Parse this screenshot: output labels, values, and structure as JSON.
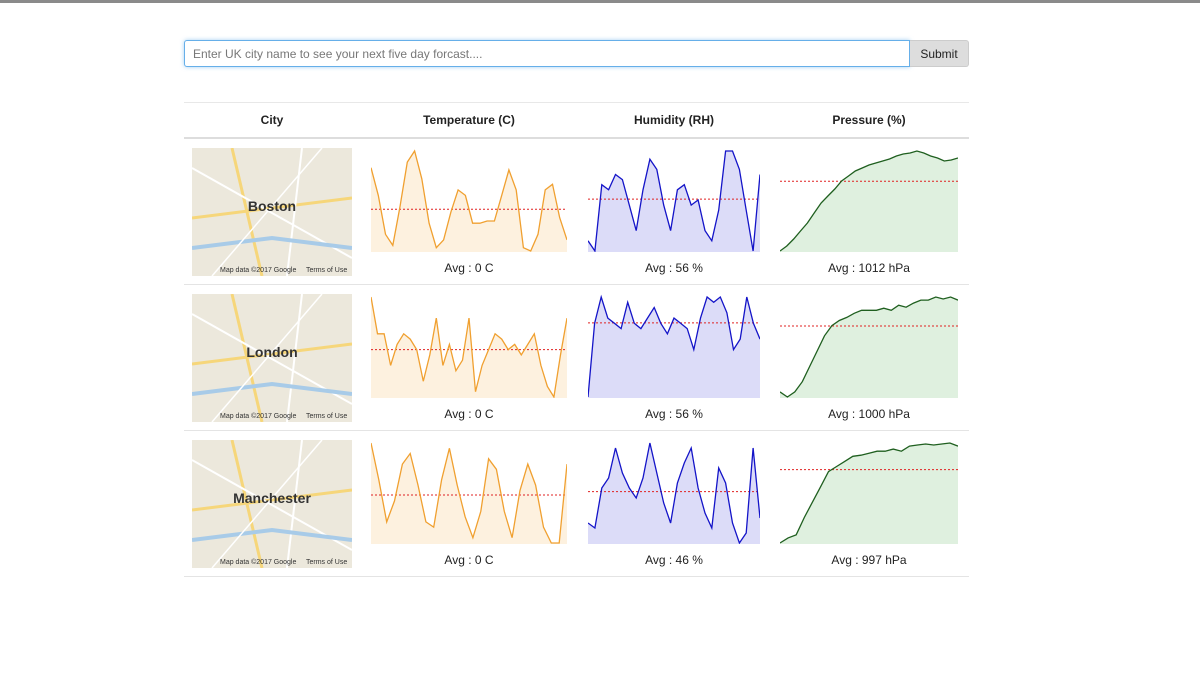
{
  "search": {
    "placeholder": "Enter UK city name to see your next five day forcast....",
    "button": "Submit"
  },
  "table": {
    "headers": [
      "City",
      "Temperature (C)",
      "Humidity (RH)",
      "Pressure (%)"
    ],
    "rows": [
      {
        "city": "Boston",
        "map_attribution": "Map data ©2017 Google",
        "map_terms": "Terms of Use",
        "temperature": {
          "values": [
            80,
            55,
            20,
            10,
            45,
            85,
            95,
            70,
            30,
            8,
            15,
            40,
            60,
            55,
            30,
            30,
            32,
            32,
            55,
            78,
            60,
            8,
            5,
            20,
            60,
            65,
            35,
            15
          ],
          "avg": "Avg : 0 C"
        },
        "humidity": {
          "values": [
            10,
            0,
            65,
            60,
            75,
            70,
            45,
            20,
            60,
            90,
            80,
            45,
            20,
            60,
            65,
            45,
            50,
            20,
            10,
            40,
            98,
            98,
            80,
            40,
            0,
            75
          ],
          "avg": "Avg : 56 %"
        },
        "pressure": {
          "values": [
            0,
            5,
            12,
            20,
            28,
            38,
            48,
            55,
            62,
            70,
            75,
            80,
            83,
            86,
            88,
            90,
            92,
            95,
            97,
            98,
            100,
            98,
            95,
            93,
            90,
            91,
            93
          ],
          "avg": "Avg : 1012 hPa"
        }
      },
      {
        "city": "London",
        "map_attribution": "Map data ©2017 Google",
        "map_terms": "Terms of Use",
        "temperature": {
          "values": [
            95,
            60,
            60,
            30,
            50,
            60,
            55,
            45,
            15,
            40,
            75,
            30,
            50,
            25,
            35,
            75,
            5,
            30,
            45,
            60,
            55,
            45,
            50,
            40,
            50,
            60,
            30,
            10,
            0,
            40,
            75
          ],
          "avg": "Avg : 0 C"
        },
        "humidity": {
          "values": [
            0,
            70,
            95,
            75,
            70,
            65,
            90,
            70,
            65,
            75,
            85,
            70,
            60,
            75,
            70,
            65,
            45,
            75,
            95,
            90,
            95,
            80,
            45,
            55,
            95,
            70,
            55
          ],
          "avg": "Avg : 56 %"
        },
        "pressure": {
          "values": [
            5,
            0,
            5,
            15,
            30,
            45,
            60,
            70,
            75,
            78,
            82,
            85,
            85,
            85,
            87,
            85,
            90,
            88,
            92,
            95,
            95,
            98,
            96,
            98,
            95
          ],
          "avg": "Avg : 1000 hPa"
        }
      },
      {
        "city": "Manchester",
        "map_attribution": "Map data ©2017 Google",
        "map_terms": "Terms of Use",
        "temperature": {
          "values": [
            95,
            60,
            20,
            40,
            75,
            85,
            55,
            20,
            15,
            60,
            90,
            55,
            25,
            5,
            30,
            80,
            70,
            30,
            5,
            50,
            75,
            55,
            15,
            0,
            0,
            75
          ],
          "avg": "Avg : 0 C"
        },
        "humidity": {
          "values": [
            20,
            15,
            55,
            65,
            95,
            70,
            55,
            45,
            65,
            100,
            70,
            40,
            20,
            60,
            80,
            95,
            55,
            30,
            15,
            75,
            60,
            20,
            0,
            10,
            95,
            25
          ],
          "avg": "Avg : 46 %"
        },
        "pressure": {
          "values": [
            0,
            5,
            8,
            25,
            40,
            55,
            70,
            75,
            80,
            85,
            86,
            88,
            90,
            90,
            92,
            90,
            95,
            96,
            97,
            96,
            97,
            98,
            95
          ],
          "avg": "Avg : 997 hPa"
        }
      }
    ]
  }
}
